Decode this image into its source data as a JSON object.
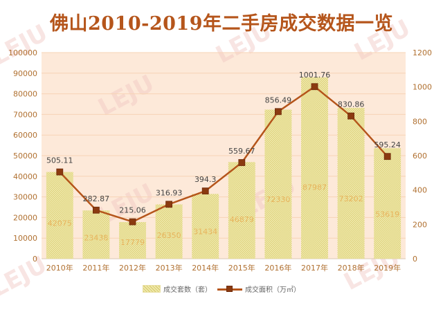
{
  "title": "佛山2010-2019年二手房成交数据一览",
  "chart_data": {
    "type": "bar+line",
    "title": "佛山2010-2019年二手房成交数据一览",
    "categories": [
      "2010年",
      "2011年",
      "2012年",
      "2013年",
      "2014年",
      "2015年",
      "2016年",
      "2017年",
      "2018年",
      "2019年"
    ],
    "series": [
      {
        "name": "成交套数（套）",
        "type": "bar",
        "axis": "left",
        "values": [
          42075,
          23438,
          17779,
          26350,
          31434,
          46879,
          72330,
          87987,
          73202,
          53619
        ],
        "labels": [
          "42075",
          "23438",
          "17779",
          "26350",
          "31434",
          "46879",
          "72330",
          "87987",
          "73202",
          "53619"
        ]
      },
      {
        "name": "成交面积（万㎡）",
        "type": "line",
        "axis": "right",
        "values": [
          505.11,
          282.87,
          215.06,
          316.93,
          394.3,
          559.67,
          856.49,
          1001.76,
          830.86,
          595.24
        ],
        "labels": [
          "505.11",
          "282.87",
          "215.06",
          "316.93",
          "394.3",
          "559.67",
          "856.49",
          "1001.76",
          "830.86",
          "595.24"
        ]
      }
    ],
    "y_left": {
      "min": 0,
      "max": 100000,
      "ticks": [
        "0",
        "10000",
        "20000",
        "30000",
        "40000",
        "50000",
        "60000",
        "70000",
        "80000",
        "90000",
        "100000"
      ]
    },
    "y_right": {
      "min": 0,
      "max": 1200,
      "ticks": [
        "0",
        "200",
        "400",
        "600",
        "800",
        "1000",
        "1200"
      ]
    },
    "legend_position": "bottom",
    "colors": {
      "title": "#b5551b",
      "plot_bg": "#fde9d9",
      "gridline": "#f7d3b5",
      "bar_fill_light": "#f3eeb5",
      "bar_fill_dark": "#dcd07a",
      "line": "#b5551b",
      "marker": "#8b3a10",
      "bar_label": "#e8b35c",
      "line_label": "#444444",
      "axis_text": "#b07030",
      "watermark": "#f0c6c0"
    },
    "watermark_text": "LEJU"
  }
}
